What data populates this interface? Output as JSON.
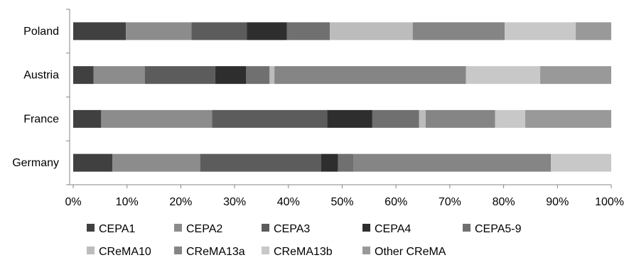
{
  "chart_data": {
    "type": "bar",
    "orientation": "horizontal",
    "stacked": true,
    "percent_stacked": true,
    "title": "",
    "xlabel": "",
    "ylabel": "",
    "xlim": [
      0,
      100
    ],
    "x_ticks": [
      "0%",
      "10%",
      "20%",
      "30%",
      "40%",
      "50%",
      "60%",
      "70%",
      "80%",
      "90%",
      "100%"
    ],
    "grid": false,
    "legend_position": "bottom",
    "categories": [
      "Poland",
      "Austria",
      "France",
      "Germany"
    ],
    "series": [
      {
        "name": "CEPA1",
        "color": "#404040",
        "values": [
          9.8,
          3.8,
          5.2,
          7.3
        ]
      },
      {
        "name": "CEPA2",
        "color": "#8c8c8c",
        "values": [
          12.2,
          9.5,
          20.6,
          16.3
        ]
      },
      {
        "name": "CEPA3",
        "color": "#5c5c5c",
        "values": [
          10.3,
          13.1,
          21.4,
          22.5
        ]
      },
      {
        "name": "CEPA4",
        "color": "#2e2e2e",
        "values": [
          7.4,
          5.7,
          8.4,
          3.1
        ]
      },
      {
        "name": "CEPA5-9",
        "color": "#707070",
        "values": [
          8.0,
          4.4,
          8.7,
          2.9
        ]
      },
      {
        "name": "CReMA10",
        "color": "#bcbcbc",
        "values": [
          15.4,
          0.9,
          1.2,
          0.0
        ]
      },
      {
        "name": "CReMA13a",
        "color": "#858585",
        "values": [
          17.1,
          35.6,
          12.9,
          36.7
        ]
      },
      {
        "name": "CReMA13b",
        "color": "#c8c8c8",
        "values": [
          13.2,
          13.8,
          5.6,
          11.2
        ]
      },
      {
        "name": "Other CReMA",
        "color": "#999999",
        "values": [
          6.6,
          13.2,
          16.0,
          0.0
        ]
      }
    ]
  }
}
